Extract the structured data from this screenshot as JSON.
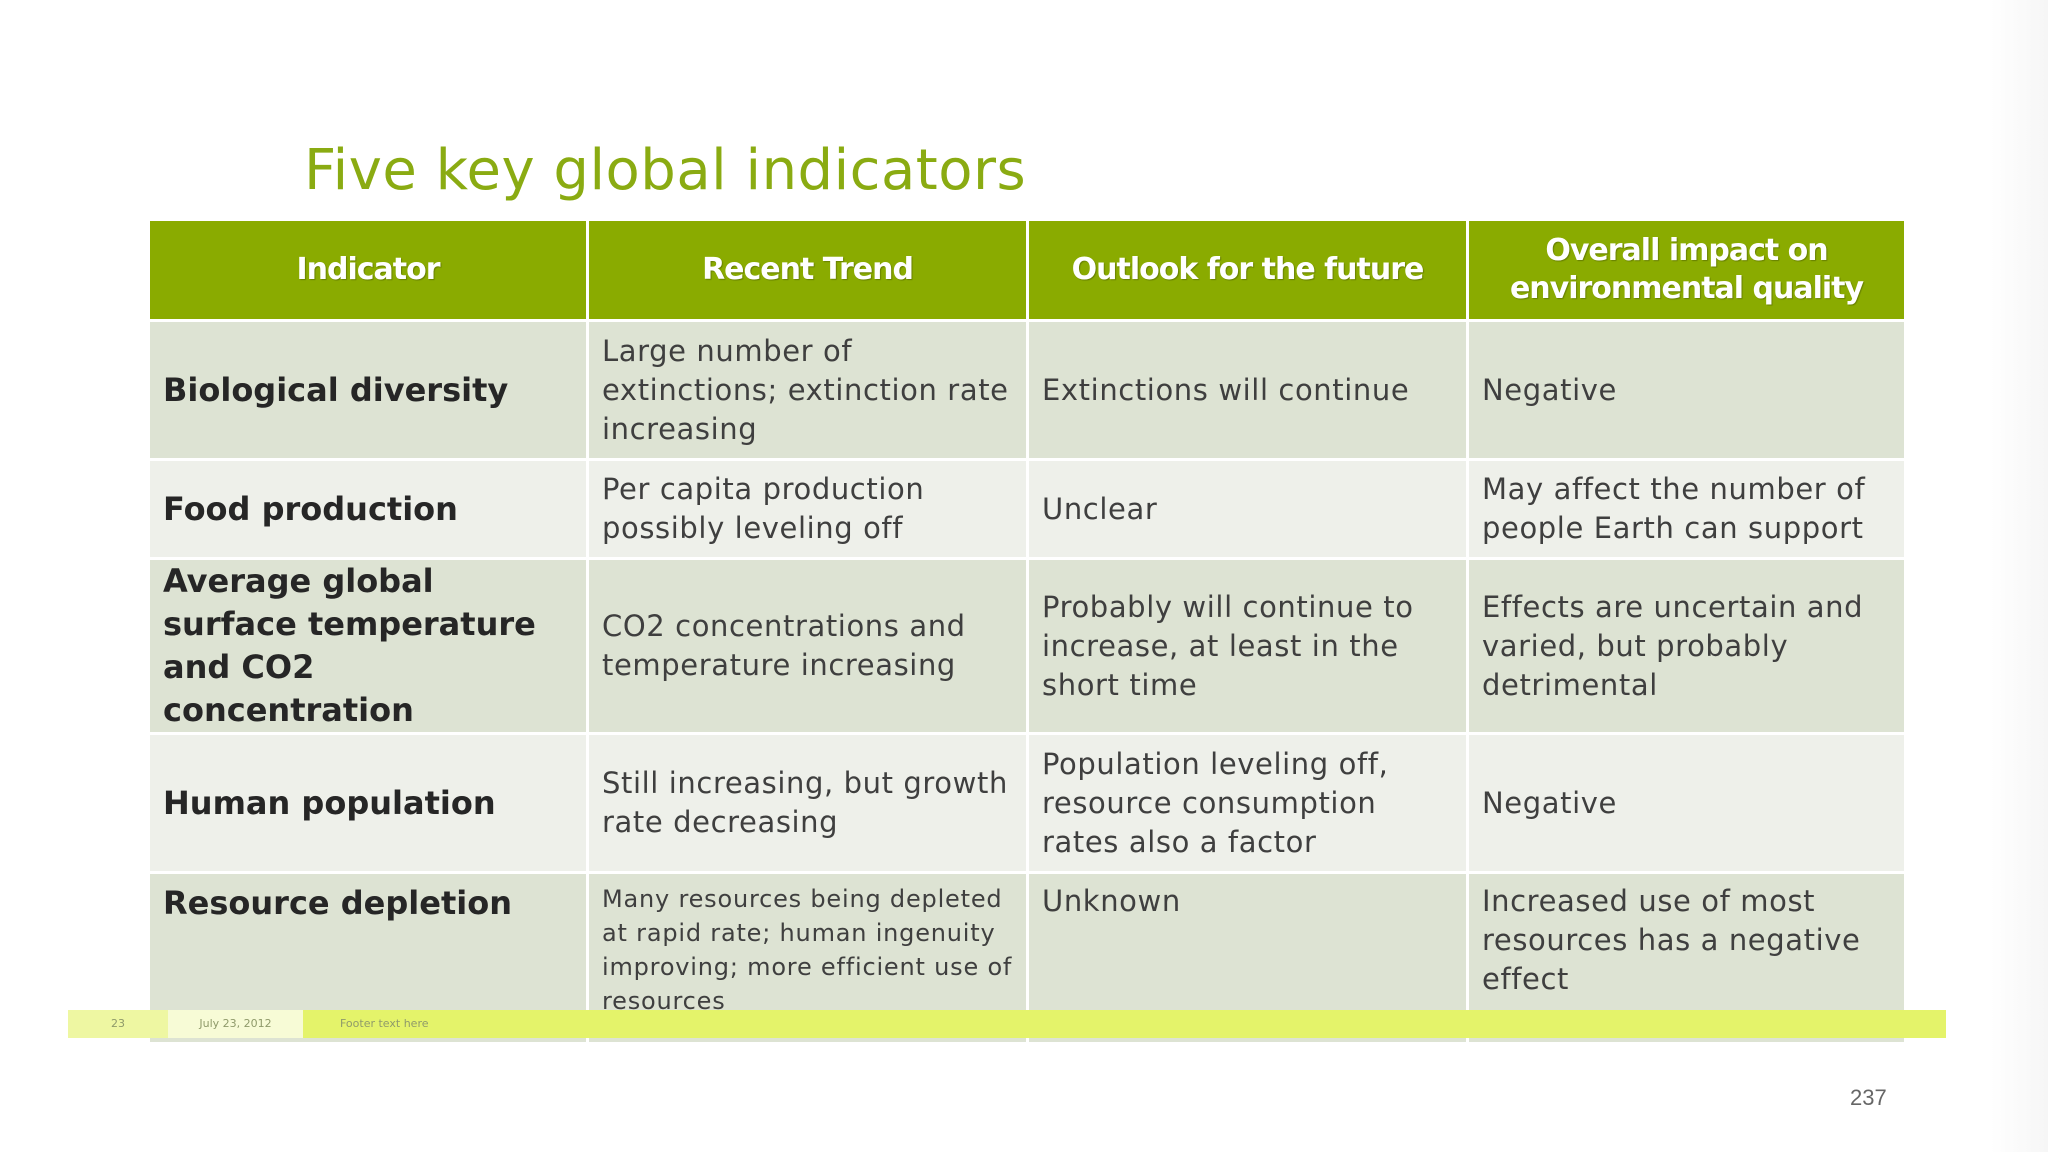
{
  "slide": {
    "title": "Five key global indicators",
    "page_number": "237"
  },
  "table": {
    "headers": [
      "Indicator",
      "Recent Trend",
      "Outlook for the future",
      "Overall impact on environmental quality"
    ],
    "rows": [
      [
        "Biological diversity",
        "Large number of extinctions; extinction rate increasing",
        "Extinctions will continue",
        "Negative"
      ],
      [
        "Food production",
        "Per capita production possibly leveling off",
        "Unclear",
        "May affect the number of people Earth can support"
      ],
      [
        "Average global surface temperature  and CO2 concentration",
        "CO2 concentrations and temperature increasing",
        "Probably will continue to increase, at least in the short time",
        "Effects are uncertain and varied, but probably detrimental"
      ],
      [
        "Human population",
        "Still increasing, but growth rate decreasing",
        "Population leveling off, resource consumption rates also a factor",
        "Negative"
      ],
      [
        "Resource depletion",
        "Many resources being depleted at rapid rate; human ingenuity improving; more efficient use of resources",
        "Unknown",
        "Increased use of most resources has a negative effect"
      ]
    ]
  },
  "footer": {
    "slide_num": "23",
    "date": "July 23, 2012",
    "text": "Footer text here"
  },
  "colors": {
    "accent": "#8aab00",
    "title": "#8aab12",
    "row_odd": "#dde3d3",
    "row_even": "#eef0ea",
    "footer_bar": "#e4f36a"
  }
}
